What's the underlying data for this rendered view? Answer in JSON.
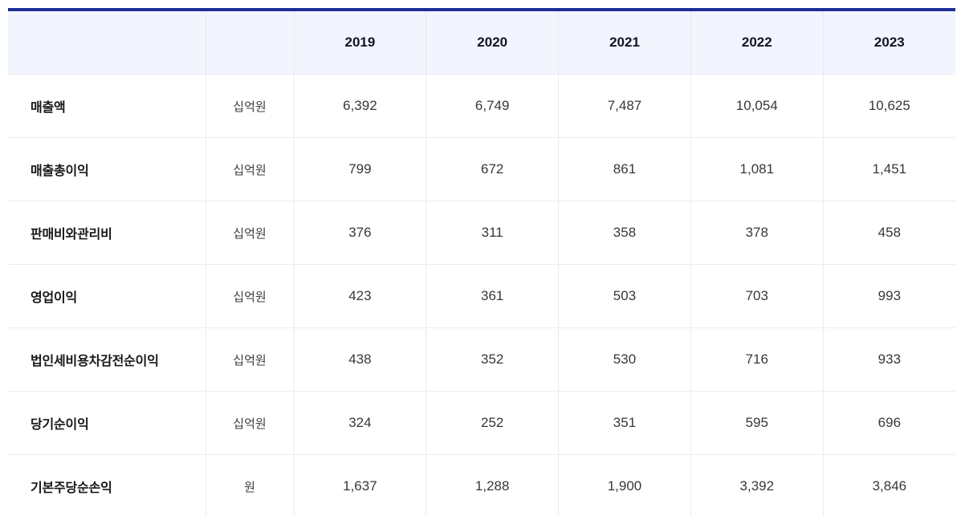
{
  "table": {
    "label_header": "",
    "unit_header": "",
    "columns": [
      "2019",
      "2020",
      "2021",
      "2022",
      "2023"
    ],
    "rows": [
      {
        "label": "매출액",
        "unit": "십억원",
        "values": [
          "6,392",
          "6,749",
          "7,487",
          "10,054",
          "10,625"
        ]
      },
      {
        "label": "매출총이익",
        "unit": "십억원",
        "values": [
          "799",
          "672",
          "861",
          "1,081",
          "1,451"
        ]
      },
      {
        "label": "판매비와관리비",
        "unit": "십억원",
        "values": [
          "376",
          "311",
          "358",
          "378",
          "458"
        ]
      },
      {
        "label": "영업이익",
        "unit": "십억원",
        "values": [
          "423",
          "361",
          "503",
          "703",
          "993"
        ]
      },
      {
        "label": "법인세비용차감전순이익",
        "unit": "십억원",
        "values": [
          "438",
          "352",
          "530",
          "716",
          "933"
        ]
      },
      {
        "label": "당기순이익",
        "unit": "십억원",
        "values": [
          "324",
          "252",
          "351",
          "595",
          "696"
        ]
      },
      {
        "label": "기본주당순손익",
        "unit": "원",
        "values": [
          "1,637",
          "1,288",
          "1,900",
          "3,392",
          "3,846"
        ]
      }
    ],
    "colors": {
      "accent_top_border": "#1c2f9b",
      "header_background": "#f2f5fd",
      "grid_line": "#ececf0",
      "bottom_border": "#e2e3e7"
    }
  },
  "chart_data": {
    "type": "table",
    "categories": [
      "2019",
      "2020",
      "2021",
      "2022",
      "2023"
    ],
    "series": [
      {
        "name": "매출액",
        "unit": "십억원",
        "values": [
          6392,
          6749,
          7487,
          10054,
          10625
        ]
      },
      {
        "name": "매출총이익",
        "unit": "십억원",
        "values": [
          799,
          672,
          861,
          1081,
          1451
        ]
      },
      {
        "name": "판매비와관리비",
        "unit": "십억원",
        "values": [
          376,
          311,
          358,
          378,
          458
        ]
      },
      {
        "name": "영업이익",
        "unit": "십억원",
        "values": [
          423,
          361,
          503,
          703,
          993
        ]
      },
      {
        "name": "법인세비용차감전순이익",
        "unit": "십억원",
        "values": [
          438,
          352,
          530,
          716,
          933
        ]
      },
      {
        "name": "당기순이익",
        "unit": "십억원",
        "values": [
          324,
          252,
          351,
          595,
          696
        ]
      },
      {
        "name": "기본주당순손익",
        "unit": "원",
        "values": [
          1637,
          1288,
          1900,
          3392,
          3846
        ]
      }
    ]
  }
}
